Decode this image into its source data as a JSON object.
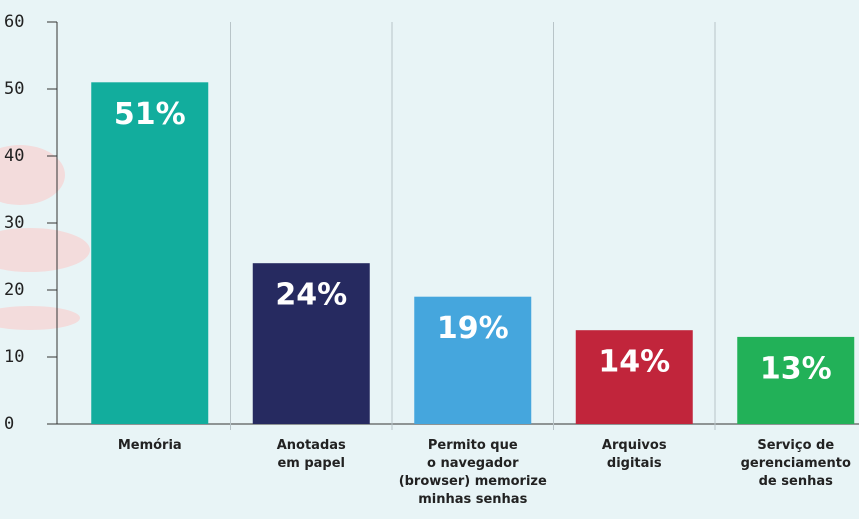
{
  "chart_data": {
    "type": "bar",
    "categories": [
      "Memória",
      "Anotadas\nem papel",
      "Permito que\no navegador\n(browser) memorize\nminhas senhas",
      "Arquivos\ndigitais",
      "Serviço de\ngerenciamento\nde senhas"
    ],
    "values": [
      51,
      24,
      19,
      14,
      13
    ],
    "value_labels": [
      "51%",
      "24%",
      "19%",
      "14%",
      "13%"
    ],
    "colors": [
      "#12ad9d",
      "#262a60",
      "#45a6dd",
      "#c1253b",
      "#22b158"
    ],
    "ylim": [
      0,
      60
    ],
    "yticks": [
      0,
      10,
      20,
      30,
      40,
      50,
      60
    ],
    "grid": false
  }
}
